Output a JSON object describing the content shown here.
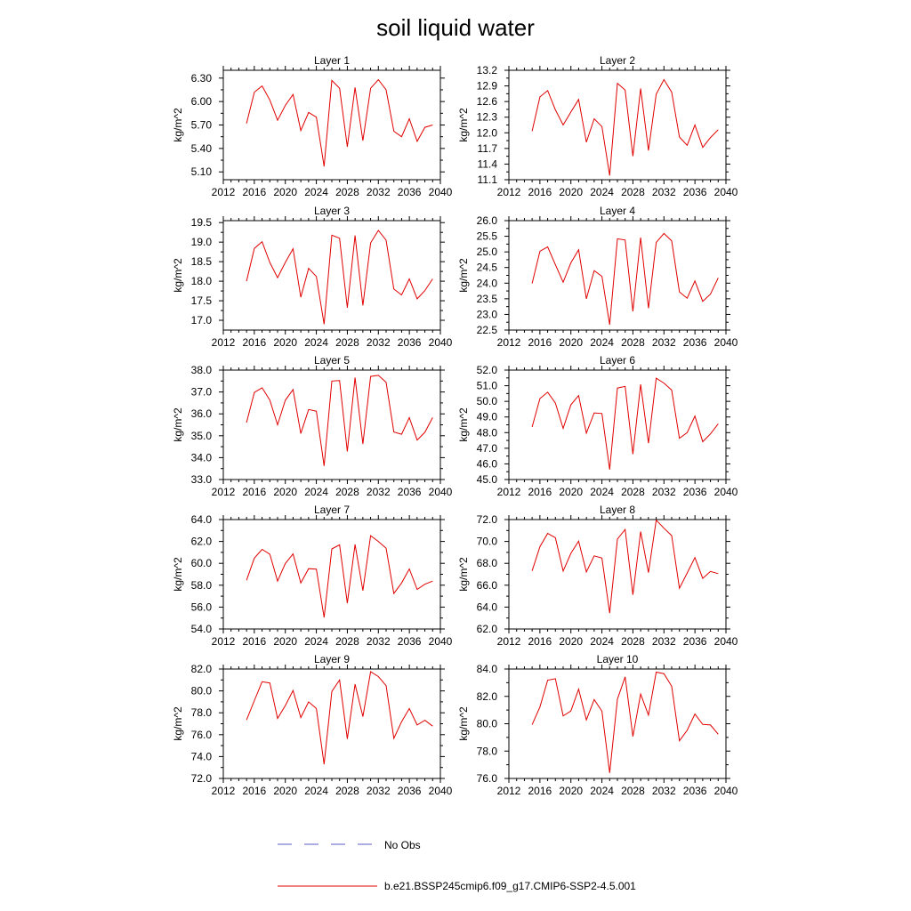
{
  "figure": {
    "title": "soil liquid water",
    "legend": [
      {
        "label": "No Obs",
        "color": "#5b5bc8",
        "style": "dashed"
      },
      {
        "label": "b.e21.BSSP245cmip6.f09_g17.CMIP6-SSP2-4.5.001",
        "color": "#e00000",
        "style": "solid"
      }
    ]
  },
  "chart_data": [
    {
      "type": "line",
      "title": "Layer 1",
      "xlabel": "",
      "ylabel": "kg/m^2",
      "xlim": [
        2012,
        2040
      ],
      "xticks": [
        2012,
        2016,
        2020,
        2024,
        2028,
        2032,
        2036,
        2040
      ],
      "ylim": [
        5.0,
        6.4
      ],
      "yticks": [
        "5.10",
        "5.40",
        "5.70",
        "6.00",
        "6.30"
      ],
      "series": [
        {
          "color": "#e00000",
          "x": [
            2015,
            2016,
            2017,
            2018,
            2019,
            2020,
            2021,
            2022,
            2023,
            2024,
            2025,
            2026,
            2027,
            2028,
            2029,
            2030,
            2031,
            2032,
            2033,
            2034,
            2035,
            2036,
            2037,
            2038,
            2039
          ],
          "y": [
            5.72,
            6.12,
            6.2,
            6.02,
            5.76,
            5.95,
            6.09,
            5.63,
            5.86,
            5.8,
            5.17,
            6.27,
            6.17,
            5.42,
            6.18,
            5.5,
            6.17,
            6.28,
            6.15,
            5.62,
            5.55,
            5.78,
            5.49,
            5.67,
            5.7
          ]
        }
      ]
    },
    {
      "type": "line",
      "title": "Layer 2",
      "xlabel": "",
      "ylabel": "kg/m^2",
      "xlim": [
        2012,
        2040
      ],
      "xticks": [
        2012,
        2016,
        2020,
        2024,
        2028,
        2032,
        2036,
        2040
      ],
      "ylim": [
        11.1,
        13.2
      ],
      "yticks": [
        "11.1",
        "11.4",
        "11.7",
        "12.0",
        "12.3",
        "12.6",
        "12.9",
        "13.2"
      ],
      "series": [
        {
          "color": "#e00000",
          "x": [
            2015,
            2016,
            2017,
            2018,
            2019,
            2020,
            2021,
            2022,
            2023,
            2024,
            2025,
            2026,
            2027,
            2028,
            2029,
            2030,
            2031,
            2032,
            2033,
            2034,
            2035,
            2036,
            2037,
            2038,
            2039
          ],
          "y": [
            12.03,
            12.69,
            12.81,
            12.44,
            12.15,
            12.4,
            12.64,
            11.82,
            12.27,
            12.12,
            11.18,
            12.95,
            12.82,
            11.55,
            12.85,
            11.66,
            12.74,
            13.02,
            12.78,
            11.92,
            11.76,
            12.15,
            11.72,
            11.91,
            12.06
          ]
        }
      ]
    },
    {
      "type": "line",
      "title": "Layer 3",
      "xlabel": "",
      "ylabel": "kg/m^2",
      "xlim": [
        2012,
        2040
      ],
      "xticks": [
        2012,
        2016,
        2020,
        2024,
        2028,
        2032,
        2036,
        2040
      ],
      "ylim": [
        16.75,
        19.55
      ],
      "yticks": [
        "17.0",
        "17.5",
        "18.0",
        "18.5",
        "19.0",
        "19.5"
      ],
      "series": [
        {
          "color": "#e00000",
          "x": [
            2015,
            2016,
            2017,
            2018,
            2019,
            2020,
            2021,
            2022,
            2023,
            2024,
            2025,
            2026,
            2027,
            2028,
            2029,
            2030,
            2031,
            2032,
            2033,
            2034,
            2035,
            2036,
            2037,
            2038,
            2039
          ],
          "y": [
            18.0,
            18.84,
            19.01,
            18.48,
            18.09,
            18.48,
            18.83,
            17.59,
            18.33,
            18.12,
            16.9,
            19.18,
            19.1,
            17.32,
            19.17,
            17.38,
            18.98,
            19.3,
            19.05,
            17.8,
            17.65,
            18.06,
            17.55,
            17.76,
            18.06
          ]
        }
      ]
    },
    {
      "type": "line",
      "title": "Layer 4",
      "xlabel": "",
      "ylabel": "kg/m^2",
      "xlim": [
        2012,
        2040
      ],
      "xticks": [
        2012,
        2016,
        2020,
        2024,
        2028,
        2032,
        2036,
        2040
      ],
      "ylim": [
        22.5,
        26.0
      ],
      "yticks": [
        "22.5",
        "23.0",
        "23.5",
        "24.0",
        "24.5",
        "25.0",
        "25.5",
        "26.0"
      ],
      "series": [
        {
          "color": "#e00000",
          "x": [
            2015,
            2016,
            2017,
            2018,
            2019,
            2020,
            2021,
            2022,
            2023,
            2024,
            2025,
            2026,
            2027,
            2028,
            2029,
            2030,
            2031,
            2032,
            2033,
            2034,
            2035,
            2036,
            2037,
            2038,
            2039
          ],
          "y": [
            23.99,
            25.02,
            25.16,
            24.59,
            24.03,
            24.65,
            25.07,
            23.5,
            24.4,
            24.22,
            22.67,
            25.42,
            25.38,
            23.1,
            25.46,
            23.2,
            25.3,
            25.59,
            25.35,
            23.72,
            23.52,
            24.07,
            23.42,
            23.65,
            24.17
          ]
        }
      ]
    },
    {
      "type": "line",
      "title": "Layer 5",
      "xlabel": "",
      "ylabel": "kg/m^2",
      "xlim": [
        2012,
        2040
      ],
      "xticks": [
        2012,
        2016,
        2020,
        2024,
        2028,
        2032,
        2036,
        2040
      ],
      "ylim": [
        33.0,
        38.0
      ],
      "yticks": [
        "33.0",
        "34.0",
        "35.0",
        "36.0",
        "37.0",
        "38.0"
      ],
      "series": [
        {
          "color": "#e00000",
          "x": [
            2015,
            2016,
            2017,
            2018,
            2019,
            2020,
            2021,
            2022,
            2023,
            2024,
            2025,
            2026,
            2027,
            2028,
            2029,
            2030,
            2031,
            2032,
            2033,
            2034,
            2035,
            2036,
            2037,
            2038,
            2039
          ],
          "y": [
            35.6,
            36.98,
            37.19,
            36.63,
            35.5,
            36.62,
            37.11,
            35.1,
            36.2,
            36.12,
            33.62,
            37.5,
            37.52,
            34.28,
            37.66,
            34.62,
            37.71,
            37.76,
            37.44,
            35.17,
            35.07,
            35.83,
            34.8,
            35.16,
            35.83
          ]
        }
      ]
    },
    {
      "type": "line",
      "title": "Layer 6",
      "xlabel": "",
      "ylabel": "kg/m^2",
      "xlim": [
        2012,
        2040
      ],
      "xticks": [
        2012,
        2016,
        2020,
        2024,
        2028,
        2032,
        2036,
        2040
      ],
      "ylim": [
        45.0,
        52.0
      ],
      "yticks": [
        "45.0",
        "46.0",
        "47.0",
        "48.0",
        "49.0",
        "50.0",
        "51.0",
        "52.0"
      ],
      "series": [
        {
          "color": "#e00000",
          "x": [
            2015,
            2016,
            2017,
            2018,
            2019,
            2020,
            2021,
            2022,
            2023,
            2024,
            2025,
            2026,
            2027,
            2028,
            2029,
            2030,
            2031,
            2032,
            2033,
            2034,
            2035,
            2036,
            2037,
            2038,
            2039
          ],
          "y": [
            48.36,
            50.18,
            50.59,
            49.89,
            48.27,
            49.78,
            50.37,
            47.97,
            49.26,
            49.22,
            45.64,
            50.85,
            50.96,
            46.63,
            51.09,
            47.32,
            51.48,
            51.17,
            50.72,
            47.64,
            48.0,
            49.06,
            47.42,
            47.92,
            48.56
          ]
        }
      ]
    },
    {
      "type": "line",
      "title": "Layer 7",
      "xlabel": "",
      "ylabel": "kg/m^2",
      "xlim": [
        2012,
        2040
      ],
      "xticks": [
        2012,
        2016,
        2020,
        2024,
        2028,
        2032,
        2036,
        2040
      ],
      "ylim": [
        54.0,
        64.0
      ],
      "yticks": [
        "54.0",
        "56.0",
        "58.0",
        "60.0",
        "62.0",
        "64.0"
      ],
      "series": [
        {
          "color": "#e00000",
          "x": [
            2015,
            2016,
            2017,
            2018,
            2019,
            2020,
            2021,
            2022,
            2023,
            2024,
            2025,
            2026,
            2027,
            2028,
            2029,
            2030,
            2031,
            2032,
            2033,
            2034,
            2035,
            2036,
            2037,
            2038,
            2039
          ],
          "y": [
            58.45,
            60.48,
            61.28,
            60.84,
            58.37,
            59.98,
            60.86,
            58.2,
            59.51,
            59.47,
            55.05,
            61.32,
            61.69,
            56.36,
            61.72,
            57.51,
            62.53,
            62.0,
            61.38,
            57.24,
            58.2,
            59.49,
            57.62,
            58.09,
            58.37
          ]
        }
      ]
    },
    {
      "type": "line",
      "title": "Layer 8",
      "xlabel": "",
      "ylabel": "kg/m^2",
      "xlim": [
        2012,
        2040
      ],
      "xticks": [
        2012,
        2016,
        2020,
        2024,
        2028,
        2032,
        2036,
        2040
      ],
      "ylim": [
        62.0,
        72.0
      ],
      "yticks": [
        "62.0",
        "64.0",
        "66.0",
        "68.0",
        "70.0",
        "72.0"
      ],
      "series": [
        {
          "color": "#e00000",
          "x": [
            2015,
            2016,
            2017,
            2018,
            2019,
            2020,
            2021,
            2022,
            2023,
            2024,
            2025,
            2026,
            2027,
            2028,
            2029,
            2030,
            2031,
            2032,
            2033,
            2034,
            2035,
            2036,
            2037,
            2038,
            2039
          ],
          "y": [
            67.31,
            69.52,
            70.73,
            70.33,
            67.29,
            68.91,
            70.03,
            67.21,
            68.68,
            68.48,
            63.45,
            70.21,
            71.1,
            65.12,
            70.9,
            67.15,
            71.94,
            71.21,
            70.53,
            65.72,
            67.11,
            68.53,
            66.63,
            67.26,
            67.06
          ]
        }
      ]
    },
    {
      "type": "line",
      "title": "Layer 9",
      "xlabel": "",
      "ylabel": "kg/m^2",
      "xlim": [
        2012,
        2040
      ],
      "xticks": [
        2012,
        2016,
        2020,
        2024,
        2028,
        2032,
        2036,
        2040
      ],
      "ylim": [
        72.0,
        82.0
      ],
      "yticks": [
        "72.0",
        "74.0",
        "76.0",
        "78.0",
        "80.0",
        "82.0"
      ],
      "series": [
        {
          "color": "#e00000",
          "x": [
            2015,
            2016,
            2017,
            2018,
            2019,
            2020,
            2021,
            2022,
            2023,
            2024,
            2025,
            2026,
            2027,
            2028,
            2029,
            2030,
            2031,
            2032,
            2033,
            2034,
            2035,
            2036,
            2037,
            2038,
            2039
          ],
          "y": [
            77.34,
            79.11,
            80.84,
            80.72,
            77.49,
            78.66,
            80.04,
            77.56,
            79.0,
            78.39,
            73.29,
            79.95,
            81.0,
            75.62,
            80.61,
            77.65,
            81.76,
            81.31,
            80.48,
            75.66,
            77.19,
            78.39,
            76.89,
            77.32,
            76.78
          ]
        }
      ]
    },
    {
      "type": "line",
      "title": "Layer 10",
      "xlabel": "",
      "ylabel": "kg/m^2",
      "xlim": [
        2012,
        2040
      ],
      "xticks": [
        2012,
        2016,
        2020,
        2024,
        2028,
        2032,
        2036,
        2040
      ],
      "ylim": [
        76.0,
        84.0
      ],
      "yticks": [
        "76.0",
        "78.0",
        "80.0",
        "82.0",
        "84.0"
      ],
      "series": [
        {
          "color": "#e00000",
          "x": [
            2015,
            2016,
            2017,
            2018,
            2019,
            2020,
            2021,
            2022,
            2023,
            2024,
            2025,
            2026,
            2027,
            2028,
            2029,
            2030,
            2031,
            2032,
            2033,
            2034,
            2035,
            2036,
            2037,
            2038,
            2039
          ],
          "y": [
            79.93,
            81.22,
            83.19,
            83.29,
            80.57,
            80.93,
            82.53,
            80.28,
            81.77,
            80.92,
            76.4,
            81.8,
            83.43,
            79.07,
            82.17,
            80.63,
            83.77,
            83.66,
            82.74,
            78.75,
            79.52,
            80.71,
            79.95,
            79.91,
            79.23
          ]
        }
      ]
    }
  ]
}
